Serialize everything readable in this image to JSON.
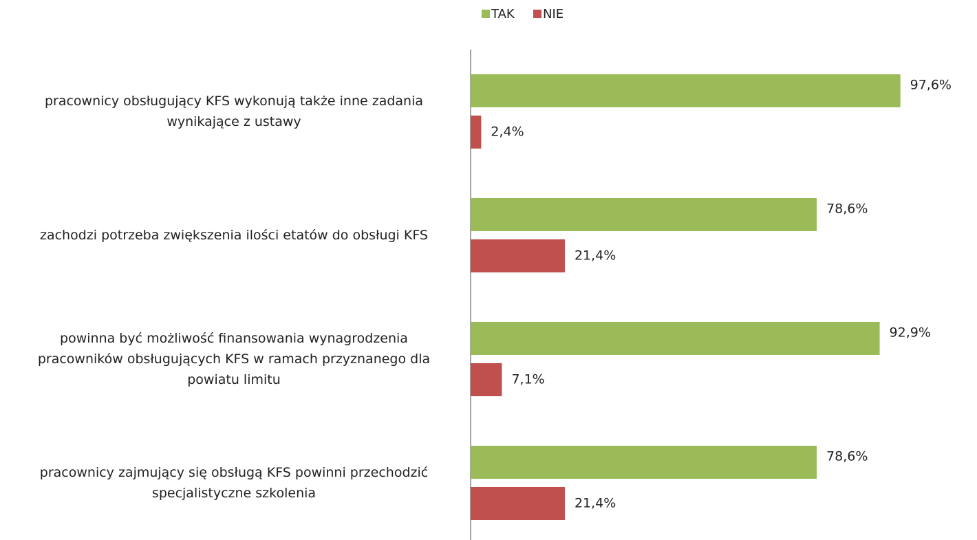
{
  "chart_data": {
    "type": "bar",
    "orientation": "horizontal",
    "categories": [
      "pracownicy obsługujący KFS wykonują także inne zadania\nwynikające z ustawy",
      "zachodzi potrzeba zwiększenia ilości etatów do obsługi KFS",
      "powinna być możliwość finansowania wynagrodzenia\npracowników obsługujących KFS w ramach przyznanego dla\npowiatu limitu",
      "pracownicy zajmujący się obsługą KFS powinni przechodzić\nspecjalistyczne szkolenia"
    ],
    "series": [
      {
        "name": "TAK",
        "color": "#9bbb59",
        "values": [
          97.6,
          78.6,
          92.9,
          78.6
        ],
        "value_labels": [
          "97,6%",
          "78,6%",
          "92,9%",
          "78,6%"
        ]
      },
      {
        "name": "NIE",
        "color": "#c0504d",
        "values": [
          2.4,
          21.4,
          7.1,
          21.4
        ],
        "value_labels": [
          "2,4%",
          "21,4%",
          "7,1%",
          "21,4%"
        ]
      }
    ],
    "xlim": [
      0,
      100
    ],
    "legend": "top"
  }
}
